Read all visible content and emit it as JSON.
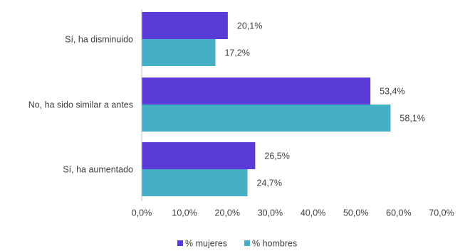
{
  "chart_data": {
    "type": "bar",
    "orientation": "horizontal",
    "categories": [
      "Sí, ha disminuido",
      "No, ha sido similar a antes",
      "Sí, ha aumentado"
    ],
    "series": [
      {
        "name": "% mujeres",
        "values": [
          20.1,
          53.4,
          26.5
        ],
        "labels": [
          "20,1%",
          "53,4%",
          "26,5%"
        ],
        "color": "#5B3BD6"
      },
      {
        "name": "% hombres",
        "values": [
          17.2,
          58.1,
          24.7
        ],
        "labels": [
          "17,2%",
          "58,1%",
          "24,7%"
        ],
        "color": "#45AFC5"
      }
    ],
    "xlim": [
      0,
      70
    ],
    "xticks": [
      0,
      10,
      20,
      30,
      40,
      50,
      60,
      70
    ],
    "xtick_labels": [
      "0,0%",
      "10,0%",
      "20,0%",
      "30,0%",
      "40,0%",
      "50,0%",
      "60,0%",
      "70,0%"
    ],
    "grid": false,
    "legend_position": "bottom"
  }
}
